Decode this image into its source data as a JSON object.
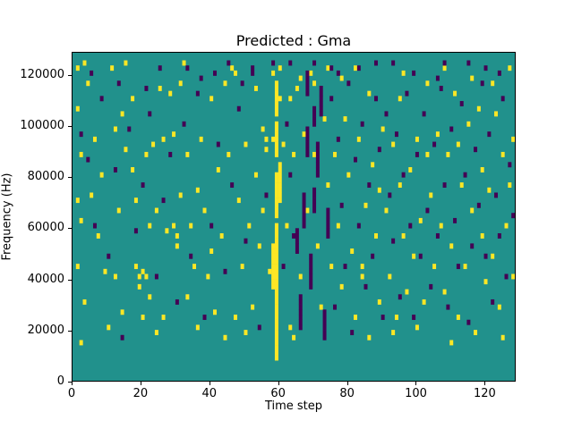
{
  "figure": {
    "title": "Predicted : Gma",
    "xlabel": "Time step",
    "ylabel": "Frequency (Hz)"
  },
  "chart_data": {
    "type": "heatmap",
    "title": "Predicted : Gma",
    "xlabel": "Time step",
    "ylabel": "Frequency (Hz)",
    "xlim": [
      0,
      129
    ],
    "ylim": [
      0,
      129000
    ],
    "x_ticks": [
      0,
      20,
      40,
      60,
      80,
      100,
      120
    ],
    "x_tick_labels": [
      "0",
      "20",
      "40",
      "60",
      "80",
      "100",
      "120"
    ],
    "y_ticks": [
      0,
      20000,
      40000,
      60000,
      80000,
      100000,
      120000
    ],
    "y_tick_labels": [
      "0",
      "20000",
      "40000",
      "60000",
      "80000",
      "100000",
      "120000"
    ],
    "grid": false,
    "legend": "none",
    "cell_width_time_steps": 1,
    "cell_height_hz": 2000,
    "colors": {
      "background": "#21918c",
      "yellow": "#fde725",
      "purple": "#440154",
      "frame": "#000000"
    },
    "yellow_runs": [
      [
        59,
        4,
        30
      ],
      [
        59,
        32,
        40
      ],
      [
        59,
        44,
        50
      ],
      [
        59,
        54,
        57
      ],
      [
        58,
        18,
        26
      ],
      [
        60,
        35,
        42
      ]
    ],
    "purple_runs": [
      [
        66,
        10,
        16
      ],
      [
        67,
        30,
        36
      ],
      [
        69,
        18,
        24
      ],
      [
        71,
        40,
        46
      ],
      [
        73,
        8,
        13
      ],
      [
        74,
        28,
        33
      ],
      [
        68,
        44,
        49
      ],
      [
        72,
        52,
        57
      ],
      [
        65,
        25,
        29
      ],
      [
        70,
        33,
        37
      ],
      [
        68,
        56,
        60
      ],
      [
        70,
        50,
        53
      ]
    ],
    "yellow_cells": [
      [
        1,
        61
      ],
      [
        3,
        62
      ],
      [
        4,
        58
      ],
      [
        1,
        53
      ],
      [
        2,
        44
      ],
      [
        1,
        35
      ],
      [
        2,
        31
      ],
      [
        1,
        22
      ],
      [
        3,
        15
      ],
      [
        2,
        7
      ],
      [
        6,
        47
      ],
      [
        8,
        40
      ],
      [
        9,
        21
      ],
      [
        11,
        61
      ],
      [
        12,
        49
      ],
      [
        13,
        33
      ],
      [
        14,
        13
      ],
      [
        15,
        62
      ],
      [
        15,
        45
      ],
      [
        7,
        28
      ],
      [
        5,
        36
      ],
      [
        10,
        10
      ],
      [
        12,
        20
      ],
      [
        14,
        52
      ],
      [
        17,
        41
      ],
      [
        18,
        22
      ],
      [
        19,
        20
      ],
      [
        19,
        18
      ],
      [
        20,
        21
      ],
      [
        20,
        12
      ],
      [
        21,
        44
      ],
      [
        21,
        20
      ],
      [
        22,
        30
      ],
      [
        23,
        46
      ],
      [
        24,
        9
      ],
      [
        25,
        57
      ],
      [
        26,
        47
      ],
      [
        27,
        29
      ],
      [
        28,
        56
      ],
      [
        29,
        30
      ],
      [
        30,
        28
      ],
      [
        30,
        26
      ],
      [
        18,
        35
      ],
      [
        22,
        16
      ],
      [
        26,
        12
      ],
      [
        29,
        48
      ],
      [
        17,
        55
      ],
      [
        24,
        33
      ],
      [
        31,
        58
      ],
      [
        32,
        62
      ],
      [
        33,
        44
      ],
      [
        34,
        30
      ],
      [
        35,
        22
      ],
      [
        36,
        10
      ],
      [
        37,
        47
      ],
      [
        38,
        33
      ],
      [
        39,
        20
      ],
      [
        40,
        55
      ],
      [
        41,
        13
      ],
      [
        42,
        41
      ],
      [
        43,
        28
      ],
      [
        44,
        58
      ],
      [
        45,
        44
      ],
      [
        33,
        16
      ],
      [
        36,
        37
      ],
      [
        40,
        25
      ],
      [
        44,
        8
      ],
      [
        31,
        36
      ],
      [
        46,
        61
      ],
      [
        47,
        60
      ],
      [
        48,
        35
      ],
      [
        49,
        22
      ],
      [
        50,
        46
      ],
      [
        51,
        30
      ],
      [
        52,
        14
      ],
      [
        53,
        40
      ],
      [
        54,
        26
      ],
      [
        55,
        49
      ],
      [
        56,
        47
      ],
      [
        56,
        45
      ],
      [
        57,
        21
      ],
      [
        47,
        12
      ],
      [
        50,
        9
      ],
      [
        53,
        57
      ],
      [
        55,
        33
      ],
      [
        58,
        47
      ],
      [
        59,
        52
      ],
      [
        59,
        53
      ],
      [
        59,
        58
      ],
      [
        58,
        60
      ],
      [
        60,
        55
      ],
      [
        60,
        61
      ],
      [
        61,
        46
      ],
      [
        62,
        30
      ],
      [
        63,
        10
      ],
      [
        64,
        44
      ],
      [
        65,
        57
      ],
      [
        66,
        20
      ],
      [
        67,
        48
      ],
      [
        68,
        33
      ],
      [
        69,
        60
      ],
      [
        70,
        44
      ],
      [
        71,
        26
      ],
      [
        72,
        14
      ],
      [
        73,
        51
      ],
      [
        74,
        38
      ],
      [
        75,
        22
      ],
      [
        63,
        55
      ],
      [
        66,
        59
      ],
      [
        70,
        58
      ],
      [
        74,
        61
      ],
      [
        64,
        8
      ],
      [
        76,
        44
      ],
      [
        77,
        30
      ],
      [
        78,
        18
      ],
      [
        79,
        51
      ],
      [
        80,
        40
      ],
      [
        81,
        25
      ],
      [
        82,
        12
      ],
      [
        83,
        47
      ],
      [
        84,
        20
      ],
      [
        85,
        34
      ],
      [
        86,
        56
      ],
      [
        87,
        42
      ],
      [
        88,
        28
      ],
      [
        89,
        15
      ],
      [
        90,
        49
      ],
      [
        78,
        59
      ],
      [
        82,
        61
      ],
      [
        86,
        8
      ],
      [
        89,
        37
      ],
      [
        84,
        22
      ],
      [
        91,
        33
      ],
      [
        92,
        20
      ],
      [
        93,
        46
      ],
      [
        94,
        12
      ],
      [
        95,
        55
      ],
      [
        96,
        28
      ],
      [
        97,
        17
      ],
      [
        98,
        41
      ],
      [
        99,
        24
      ],
      [
        100,
        47
      ],
      [
        101,
        31
      ],
      [
        102,
        15
      ],
      [
        103,
        58
      ],
      [
        104,
        36
      ],
      [
        105,
        22
      ],
      [
        93,
        9
      ],
      [
        96,
        60
      ],
      [
        100,
        10
      ],
      [
        103,
        44
      ],
      [
        95,
        38
      ],
      [
        106,
        48
      ],
      [
        107,
        30
      ],
      [
        108,
        17
      ],
      [
        109,
        44
      ],
      [
        110,
        26
      ],
      [
        111,
        56
      ],
      [
        112,
        12
      ],
      [
        113,
        38
      ],
      [
        114,
        22
      ],
      [
        115,
        50
      ],
      [
        116,
        33
      ],
      [
        117,
        9
      ],
      [
        118,
        53
      ],
      [
        119,
        41
      ],
      [
        120,
        19
      ],
      [
        108,
        61
      ],
      [
        112,
        46
      ],
      [
        116,
        59
      ],
      [
        119,
        28
      ],
      [
        110,
        7
      ],
      [
        121,
        37
      ],
      [
        122,
        24
      ],
      [
        123,
        52
      ],
      [
        124,
        14
      ],
      [
        125,
        44
      ],
      [
        126,
        30
      ],
      [
        127,
        61
      ],
      [
        127,
        38
      ],
      [
        128,
        20
      ],
      [
        122,
        58
      ],
      [
        125,
        8
      ],
      [
        128,
        47
      ]
    ],
    "purple_cells": [
      [
        2,
        48
      ],
      [
        4,
        43
      ],
      [
        6,
        30
      ],
      [
        8,
        55
      ],
      [
        10,
        24
      ],
      [
        12,
        41
      ],
      [
        14,
        8
      ],
      [
        16,
        49
      ],
      [
        18,
        29
      ],
      [
        20,
        38
      ],
      [
        22,
        52
      ],
      [
        24,
        20
      ],
      [
        26,
        35
      ],
      [
        28,
        44
      ],
      [
        30,
        15
      ],
      [
        32,
        50
      ],
      [
        34,
        24
      ],
      [
        36,
        56
      ],
      [
        38,
        12
      ],
      [
        40,
        30
      ],
      [
        42,
        46
      ],
      [
        44,
        21
      ],
      [
        46,
        38
      ],
      [
        48,
        53
      ],
      [
        50,
        27
      ],
      [
        52,
        60
      ],
      [
        54,
        10
      ],
      [
        56,
        36
      ],
      [
        61,
        22
      ],
      [
        62,
        50
      ],
      [
        63,
        40
      ],
      [
        64,
        28
      ],
      [
        75,
        55
      ],
      [
        76,
        14
      ],
      [
        77,
        47
      ],
      [
        78,
        34
      ],
      [
        79,
        22
      ],
      [
        80,
        58
      ],
      [
        81,
        9
      ],
      [
        82,
        43
      ],
      [
        83,
        30
      ],
      [
        84,
        50
      ],
      [
        85,
        18
      ],
      [
        86,
        38
      ],
      [
        87,
        24
      ],
      [
        88,
        55
      ],
      [
        89,
        45
      ],
      [
        90,
        12
      ],
      [
        91,
        52
      ],
      [
        92,
        36
      ],
      [
        93,
        27
      ],
      [
        94,
        48
      ],
      [
        95,
        16
      ],
      [
        96,
        40
      ],
      [
        97,
        56
      ],
      [
        98,
        30
      ],
      [
        99,
        12
      ],
      [
        100,
        44
      ],
      [
        101,
        24
      ],
      [
        102,
        52
      ],
      [
        103,
        33
      ],
      [
        104,
        18
      ],
      [
        105,
        46
      ],
      [
        106,
        28
      ],
      [
        107,
        57
      ],
      [
        108,
        38
      ],
      [
        109,
        14
      ],
      [
        110,
        49
      ],
      [
        111,
        31
      ],
      [
        112,
        22
      ],
      [
        113,
        54
      ],
      [
        114,
        40
      ],
      [
        115,
        11
      ],
      [
        116,
        26
      ],
      [
        117,
        45
      ],
      [
        118,
        34
      ],
      [
        119,
        58
      ],
      [
        120,
        24
      ],
      [
        121,
        48
      ],
      [
        122,
        15
      ],
      [
        123,
        36
      ],
      [
        124,
        28
      ],
      [
        125,
        55
      ],
      [
        126,
        20
      ],
      [
        127,
        42
      ],
      [
        128,
        32
      ],
      [
        5,
        60
      ],
      [
        25,
        61
      ],
      [
        45,
        62
      ],
      [
        52,
        61
      ],
      [
        63,
        62
      ],
      [
        75,
        61
      ],
      [
        88,
        62
      ],
      [
        99,
        60
      ],
      [
        108,
        62
      ],
      [
        120,
        61
      ],
      [
        33,
        61
      ],
      [
        41,
        60
      ],
      [
        58,
        62
      ],
      [
        70,
        62
      ],
      [
        83,
        61
      ],
      [
        93,
        62
      ],
      [
        115,
        62
      ],
      [
        13,
        58
      ],
      [
        21,
        57
      ],
      [
        37,
        59
      ],
      [
        49,
        58
      ],
      [
        77,
        60
      ],
      [
        106,
        59
      ],
      [
        124,
        60
      ]
    ]
  }
}
